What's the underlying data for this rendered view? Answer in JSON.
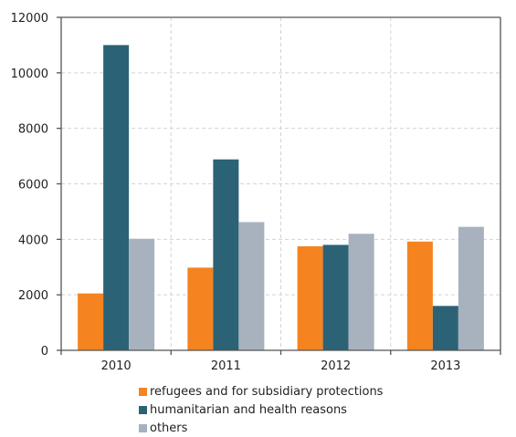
{
  "chart_data": {
    "type": "bar",
    "categories": [
      "2010",
      "2011",
      "2012",
      "2013"
    ],
    "series": [
      {
        "name": "refugees and for subsidiary protections",
        "color": "#f5831f",
        "values": [
          2050,
          2980,
          3750,
          3920
        ]
      },
      {
        "name": "humanitarian and health reasons",
        "color": "#2c6275",
        "values": [
          11000,
          6880,
          3800,
          1600
        ]
      },
      {
        "name": "others",
        "color": "#a7b2be",
        "values": [
          4020,
          4620,
          4200,
          4450
        ]
      }
    ],
    "yticks": [
      0,
      2000,
      4000,
      6000,
      8000,
      10000,
      12000
    ],
    "ylim": [
      0,
      12000
    ],
    "grid": true,
    "legend_position": "bottom",
    "title": "",
    "xlabel": "",
    "ylabel": ""
  }
}
